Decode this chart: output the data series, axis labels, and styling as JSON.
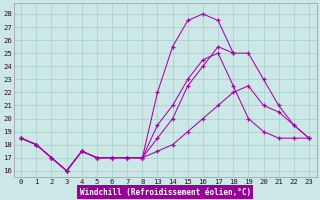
{
  "xlabel": "Windchill (Refroidissement éolien,°C)",
  "bg_color": "#cce8e6",
  "grid_color": "#aacccc",
  "line_color": "#aa00aa",
  "xlabel_bg": "#990099",
  "xlabel_fg": "#ffffff",
  "x_tick_vals": [
    0,
    1,
    2,
    3,
    4,
    5,
    6,
    7,
    8,
    13,
    14,
    15,
    16,
    17,
    18,
    19,
    20,
    21,
    22,
    23
  ],
  "x_tick_labels": [
    "0",
    "1",
    "2",
    "3",
    "4",
    "5",
    "6",
    "7",
    "8",
    "13",
    "14",
    "15",
    "16",
    "17",
    "18",
    "19",
    "20",
    "21",
    "22",
    "23"
  ],
  "ylim": [
    15.5,
    28.8
  ],
  "yticks": [
    16,
    17,
    18,
    19,
    20,
    21,
    22,
    23,
    24,
    25,
    26,
    27,
    28
  ],
  "line1_xi": [
    0,
    1,
    2,
    3,
    4,
    5,
    6,
    7,
    8,
    9,
    10,
    11,
    12,
    13,
    14,
    15,
    16,
    17,
    18,
    19
  ],
  "line1_y": [
    18.5,
    18.0,
    17.0,
    16.0,
    17.5,
    17.0,
    17.0,
    17.0,
    17.0,
    17.5,
    18.0,
    19.0,
    20.0,
    21.0,
    22.0,
    22.5,
    21.0,
    20.5,
    19.5,
    18.5
  ],
  "line2_xi": [
    0,
    1,
    2,
    3,
    4,
    5,
    6,
    7,
    8,
    9,
    10,
    11,
    12,
    13,
    14,
    15,
    16,
    17,
    18,
    19
  ],
  "line2_y": [
    18.5,
    18.0,
    17.0,
    16.0,
    17.5,
    17.0,
    17.0,
    17.0,
    17.0,
    18.5,
    20.0,
    22.5,
    24.0,
    25.5,
    25.0,
    25.0,
    23.0,
    21.0,
    19.5,
    18.5
  ],
  "line3_xi": [
    0,
    1,
    2,
    3,
    4,
    5,
    6,
    7,
    8,
    9,
    10,
    11,
    12,
    13,
    14
  ],
  "line3_y": [
    18.5,
    18.0,
    17.0,
    16.0,
    17.5,
    17.0,
    17.0,
    17.0,
    17.0,
    22.0,
    25.5,
    27.5,
    28.0,
    27.5,
    25.0
  ],
  "line4_xi": [
    0,
    1,
    2,
    3,
    4,
    5,
    6,
    7,
    8,
    9,
    10,
    11,
    12,
    13,
    14,
    15,
    16,
    17,
    18,
    19
  ],
  "line4_y": [
    18.5,
    18.0,
    17.0,
    16.0,
    17.5,
    17.0,
    17.0,
    17.0,
    17.0,
    19.5,
    21.0,
    23.0,
    24.5,
    25.0,
    22.5,
    20.0,
    19.0,
    18.5,
    18.5,
    18.5
  ]
}
